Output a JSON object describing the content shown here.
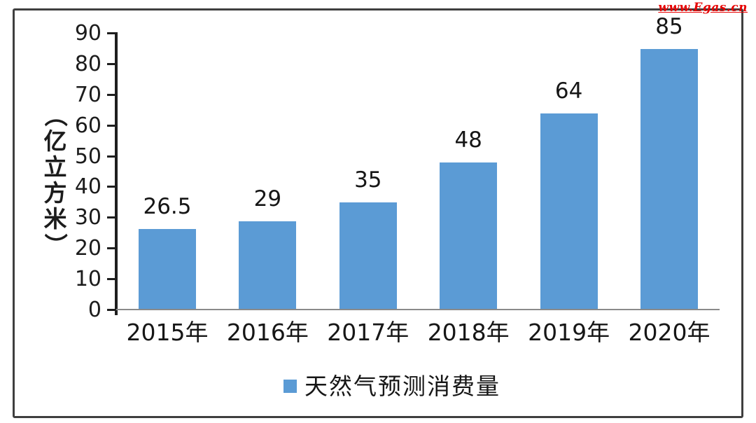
{
  "watermark": {
    "text": "www.Egas.cn",
    "color": "#e60000"
  },
  "chart_data": {
    "type": "bar",
    "categories": [
      "2015年",
      "2016年",
      "2017年",
      "2018年",
      "2019年",
      "2020年"
    ],
    "values": [
      26.5,
      29,
      35,
      48,
      64,
      85
    ],
    "value_labels": [
      "26.5",
      "29",
      "35",
      "48",
      "64",
      "85"
    ],
    "ylabel": "（亿立方米）",
    "ylabel_chars": [
      "（",
      "亿",
      "立",
      "方",
      "米",
      "）"
    ],
    "ylim": [
      0,
      90
    ],
    "yticks": [
      0,
      10,
      20,
      30,
      40,
      50,
      60,
      70,
      80,
      90
    ],
    "grid": false,
    "bar_color": "#5B9BD5",
    "axis_color": "#1f1f1f",
    "baseline_color": "#8a8a8a",
    "legend": {
      "label": "天然气预测消费量",
      "position": "bottom-center",
      "swatch_color": "#5B9BD5"
    }
  }
}
